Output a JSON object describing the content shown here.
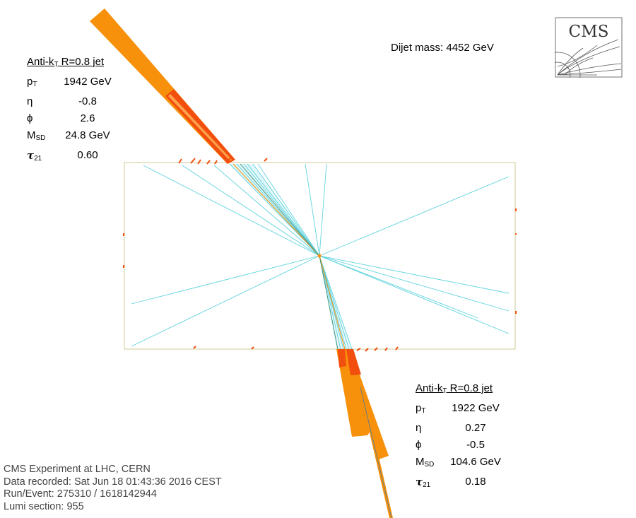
{
  "event": {
    "dijet_mass_label": "Dijet mass: 4452 GeV"
  },
  "jet1": {
    "title_prefix": "Anti-k",
    "title_sub": "T",
    "title_suffix": " R=0.8 jet",
    "pt_label": "p",
    "pt_sub": "T",
    "pt_value": "1942 GeV",
    "eta_label": "η",
    "eta_value": "-0.8",
    "phi_label": "ϕ",
    "phi_value": "2.6",
    "msd_label": "M",
    "msd_sub": "SD",
    "msd_value": "24.8 GeV",
    "tau_label": "τ",
    "tau_sub": "21",
    "tau_value": "0.60"
  },
  "jet2": {
    "title_prefix": "Anti-k",
    "title_sub": "T",
    "title_suffix": " R=0.8 jet",
    "pt_label": "p",
    "pt_sub": "T",
    "pt_value": "1922 GeV",
    "eta_label": "η",
    "eta_value": "0.27",
    "phi_label": "ϕ",
    "phi_value": "-0.5",
    "msd_label": "M",
    "msd_sub": "SD",
    "msd_value": "104.6 GeV",
    "tau_label": "τ",
    "tau_sub": "21",
    "tau_value": "0.18"
  },
  "info": {
    "line1": "CMS Experiment at LHC, CERN",
    "line2": "Data recorded: Sat Jun 18 01:43:36 2016 CEST",
    "line3": "Run/Event: 275310 / 1618142944",
    "line4": "Lumi section: 955"
  },
  "logo": {
    "text": "CMS"
  },
  "colors": {
    "jet_orange": "#f7900a",
    "jet_red": "#f24e0e",
    "track_cyan": "#5fd3de",
    "detector_frame": "#d8d2a6",
    "info_text": "#444444"
  }
}
